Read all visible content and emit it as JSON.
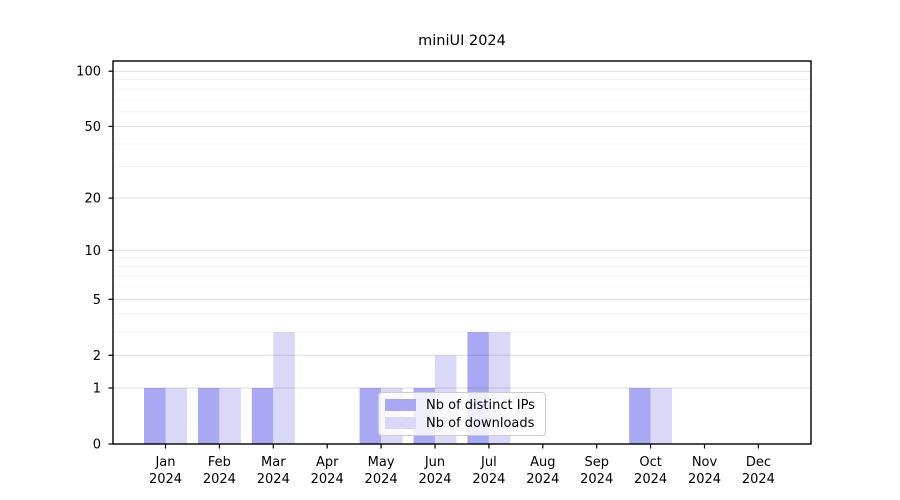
{
  "chart_data": {
    "type": "bar",
    "title": "miniUI 2024",
    "categories": [
      "Jan",
      "Feb",
      "Mar",
      "Apr",
      "May",
      "Jun",
      "Jul",
      "Aug",
      "Sep",
      "Oct",
      "Nov",
      "Dec"
    ],
    "year_label": "2024",
    "series": [
      {
        "name": "Nb of distinct IPs",
        "color": "#a9a9f3",
        "values": [
          1,
          1,
          1,
          0,
          1,
          1,
          3,
          0,
          0,
          1,
          0,
          0
        ]
      },
      {
        "name": "Nb of downloads",
        "color": "#d9d9f7",
        "values": [
          1,
          1,
          3,
          0,
          1,
          2,
          3,
          0,
          0,
          1,
          0,
          0
        ]
      }
    ],
    "xlabel": "",
    "ylabel": "",
    "yscale": "log10(1+x)",
    "ylim": [
      0,
      113.6
    ],
    "y_major_ticks": [
      0,
      1,
      2,
      5,
      10,
      20,
      50,
      100
    ],
    "y_minor_gridlines": [
      3,
      4,
      6,
      7,
      8,
      9,
      30,
      40,
      60,
      70,
      80,
      90
    ],
    "grid": "horizontal",
    "legend_position": "lower-center",
    "colors": {
      "background": "#ffffff",
      "spine": "#000000",
      "text": "#000000",
      "grid_major": "rgba(0,0,0,0.13)",
      "grid_minor": "rgba(0,0,0,0.05)",
      "legend_border": "#cccccc",
      "legend_background": "rgba(255,255,255,0.8)"
    }
  }
}
